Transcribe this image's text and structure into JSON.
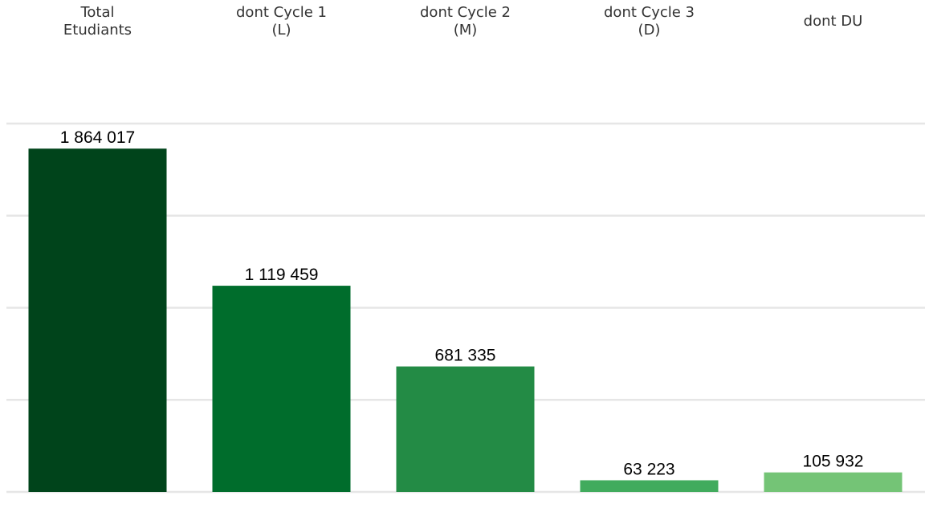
{
  "chart_data": {
    "type": "bar",
    "categories": [
      [
        "Total",
        "Etudiants"
      ],
      [
        "dont Cycle 1",
        "(L)"
      ],
      [
        "dont Cycle 2",
        "(M)"
      ],
      [
        "dont Cycle 3",
        "(D)"
      ],
      [
        "dont DU"
      ]
    ],
    "values": [
      1864017,
      1119459,
      681335,
      63223,
      105932
    ],
    "value_labels": [
      "1 864 017",
      "1 119 459",
      "681 335",
      "63 223",
      "105 932"
    ],
    "colors": [
      "#00441b",
      "#006d2c",
      "#238b45",
      "#41ab5d",
      "#74c476"
    ],
    "ylim": [
      0,
      2000000
    ],
    "gridlines": [
      0,
      500000,
      1000000,
      1500000,
      2000000
    ],
    "grid": true,
    "legend": false
  }
}
